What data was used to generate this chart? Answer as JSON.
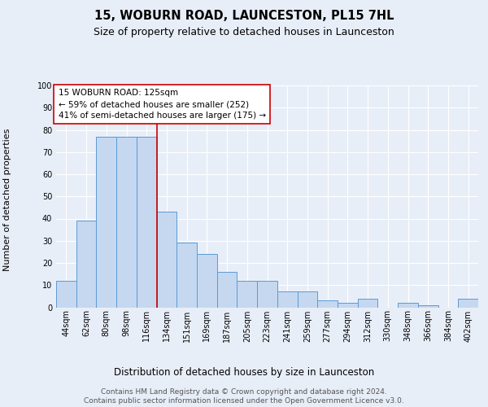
{
  "title": "15, WOBURN ROAD, LAUNCESTON, PL15 7HL",
  "subtitle": "Size of property relative to detached houses in Launceston",
  "xlabel": "Distribution of detached houses by size in Launceston",
  "ylabel": "Number of detached properties",
  "categories": [
    "44sqm",
    "62sqm",
    "80sqm",
    "98sqm",
    "116sqm",
    "134sqm",
    "151sqm",
    "169sqm",
    "187sqm",
    "205sqm",
    "223sqm",
    "241sqm",
    "259sqm",
    "277sqm",
    "294sqm",
    "312sqm",
    "330sqm",
    "348sqm",
    "366sqm",
    "384sqm",
    "402sqm"
  ],
  "values": [
    12,
    39,
    77,
    77,
    77,
    43,
    29,
    24,
    16,
    12,
    12,
    7,
    7,
    3,
    2,
    4,
    0,
    2,
    1,
    0,
    4
  ],
  "bar_color": "#c5d8f0",
  "bar_edge_color": "#5b9bd5",
  "highlight_index": 4,
  "highlight_line_color": "#cc0000",
  "ylim": [
    0,
    100
  ],
  "yticks": [
    0,
    10,
    20,
    30,
    40,
    50,
    60,
    70,
    80,
    90,
    100
  ],
  "bg_color": "#e8eef8",
  "plot_bg_color": "#e8eef8",
  "grid_color": "#ffffff",
  "annotation_text": "15 WOBURN ROAD: 125sqm\n← 59% of detached houses are smaller (252)\n41% of semi-detached houses are larger (175) →",
  "annotation_box_color": "#ffffff",
  "annotation_box_edge": "#cc0000",
  "footer_line1": "Contains HM Land Registry data © Crown copyright and database right 2024.",
  "footer_line2": "Contains public sector information licensed under the Open Government Licence v3.0.",
  "title_fontsize": 10.5,
  "subtitle_fontsize": 9,
  "xlabel_fontsize": 8.5,
  "ylabel_fontsize": 8,
  "tick_fontsize": 7,
  "annotation_fontsize": 7.5,
  "footer_fontsize": 6.5
}
